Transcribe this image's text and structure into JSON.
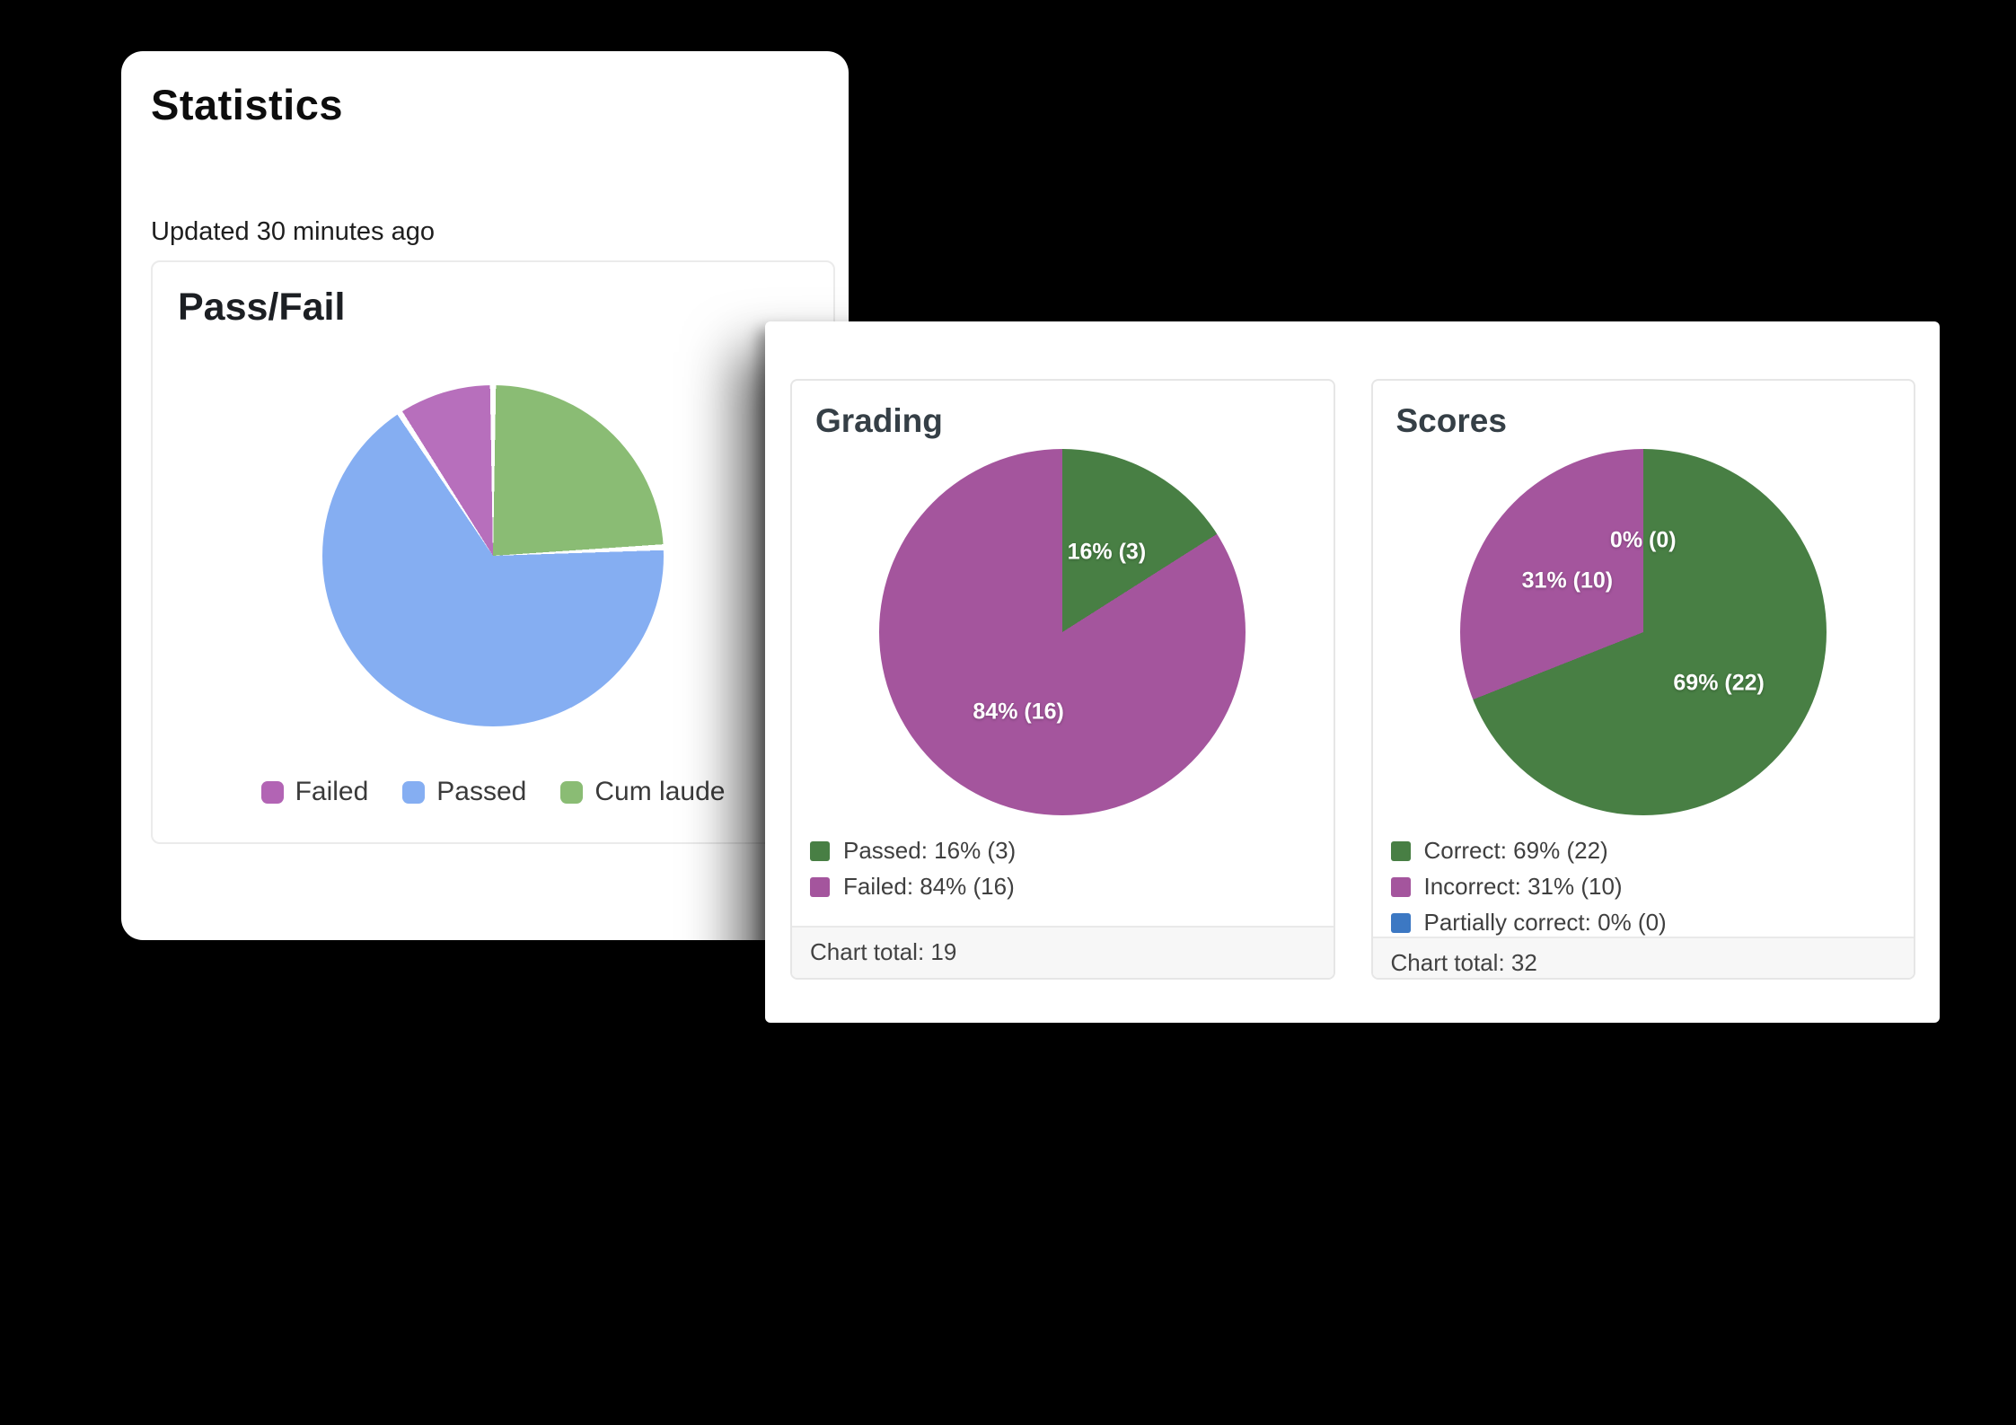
{
  "canvas": {
    "background": "#000000"
  },
  "statistics_card": {
    "title": "Statistics",
    "updated_text": "Updated 30 minutes ago"
  },
  "chart_data": [
    {
      "id": "pass_fail",
      "type": "pie",
      "title": "Pass/Fail",
      "legend_position": "bottom",
      "slice_gap_deg": 1.0,
      "note": "no numeric labels shown; percentages estimated from slice angles",
      "slices": [
        {
          "label": "Cum laude",
          "pct": 24.2,
          "color": "#8abc74",
          "pie_label": null
        },
        {
          "label": "Passed",
          "pct": 66.6,
          "color": "#85aef2",
          "pie_label": null
        },
        {
          "label": "Failed",
          "pct": 9.2,
          "color": "#b76fbc",
          "pie_label": null
        }
      ],
      "legend": [
        {
          "text": "Failed",
          "color": "#b264b4"
        },
        {
          "text": "Passed",
          "color": "#85aef2"
        },
        {
          "text": "Cum laude",
          "color": "#8abc74"
        }
      ]
    },
    {
      "id": "grading",
      "type": "pie",
      "title": "Grading",
      "legend_position": "left-bottom",
      "slice_gap_deg": 0,
      "total": 19,
      "footer": "Chart total: 19",
      "slices": [
        {
          "label": "Passed",
          "pct": 16,
          "count": 3,
          "color": "#487f44",
          "pie_label": "16% (3)"
        },
        {
          "label": "Failed",
          "pct": 84,
          "count": 16,
          "color": "#a4559d",
          "pie_label": "84% (16)"
        }
      ],
      "legend": [
        {
          "text": "Passed: 16% (3)",
          "color": "#487f44"
        },
        {
          "text": "Failed: 84% (16)",
          "color": "#a4559d"
        }
      ]
    },
    {
      "id": "scores",
      "type": "pie",
      "title": "Scores",
      "legend_position": "left-bottom",
      "slice_gap_deg": 0,
      "total": 32,
      "footer": "Chart total: 32",
      "slices": [
        {
          "label": "Correct",
          "pct": 69,
          "count": 22,
          "color": "#487f44",
          "pie_label": "69% (22)"
        },
        {
          "label": "Incorrect",
          "pct": 31,
          "count": 10,
          "color": "#a4559d",
          "pie_label": "31% (10)"
        },
        {
          "label": "Partially correct",
          "pct": 0,
          "count": 0,
          "color": "#3c78c3",
          "pie_label": "0% (0)"
        }
      ],
      "legend": [
        {
          "text": "Correct: 69% (22)",
          "color": "#487f44"
        },
        {
          "text": "Incorrect: 31% (10)",
          "color": "#a4559d"
        },
        {
          "text": "Partially correct: 0% (0)",
          "color": "#3c78c3"
        }
      ]
    }
  ]
}
